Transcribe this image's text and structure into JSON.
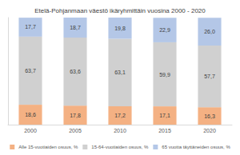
{
  "chart_data": {
    "type": "bar",
    "stacked": true,
    "title": "Etelä-Pohjanmaan väestö ikäryhmittäin vuosina 2000 - 2020",
    "categories": [
      "2000",
      "2005",
      "2010",
      "2015",
      "2020"
    ],
    "series": [
      {
        "name": "Alle 15-vuotiaiden osuus, %",
        "color": "#f4b183",
        "values": [
          18.6,
          17.8,
          17.2,
          17.1,
          16.3
        ],
        "value_labels": [
          "18,6",
          "17,8",
          "17,2",
          "17,1",
          "16,3"
        ]
      },
      {
        "name": "15-64-vuotiaiden osuus, %",
        "color": "#d0d0d0",
        "values": [
          63.7,
          63.6,
          63.1,
          59.9,
          57.7
        ],
        "value_labels": [
          "63,7",
          "63,6",
          "63,1",
          "59,9",
          "57,7"
        ]
      },
      {
        "name": "65 vuotta täyttäneiden osuus, %",
        "color": "#b4c7e7",
        "values": [
          17.7,
          18.7,
          19.8,
          22.9,
          26.0
        ],
        "value_labels": [
          "17,7",
          "18,7",
          "19,8",
          "22,9",
          "26,0"
        ]
      }
    ],
    "ylim": [
      0,
      100.1
    ],
    "yticks": [
      0,
      100
    ],
    "grid": false,
    "legend": "bottom",
    "data_labels": true,
    "tick_labels": "x"
  }
}
